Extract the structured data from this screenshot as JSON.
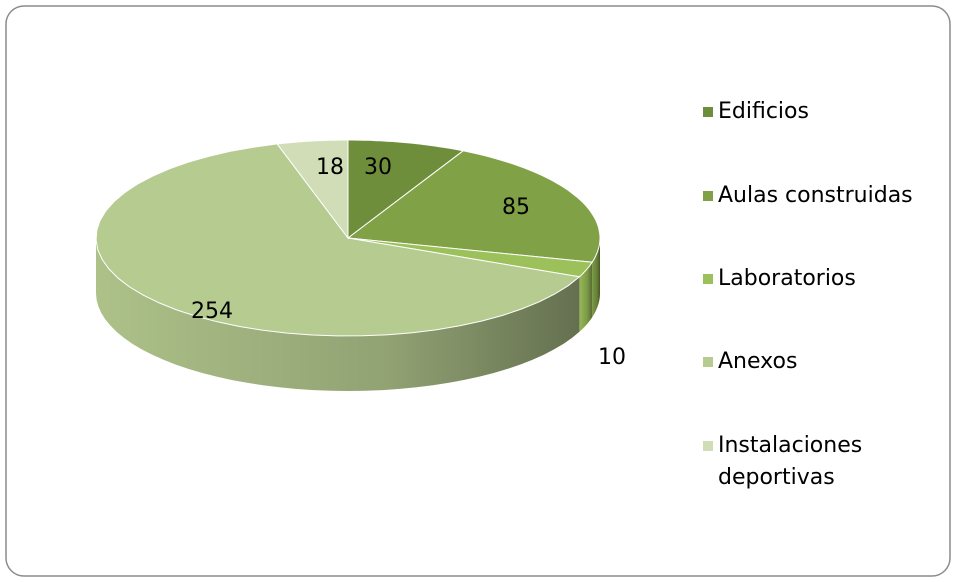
{
  "chart_data": {
    "type": "pie3d",
    "categories": [
      "Edificios",
      "Aulas construidas",
      "Laboratorios",
      "Anexos",
      "Instalaciones deportivas"
    ],
    "values": [
      30,
      85,
      10,
      254,
      18
    ],
    "colors": [
      "#6f8e3c",
      "#80a146",
      "#9cc15a",
      "#b6cb90",
      "#d0ddb6"
    ],
    "legend": "right"
  }
}
